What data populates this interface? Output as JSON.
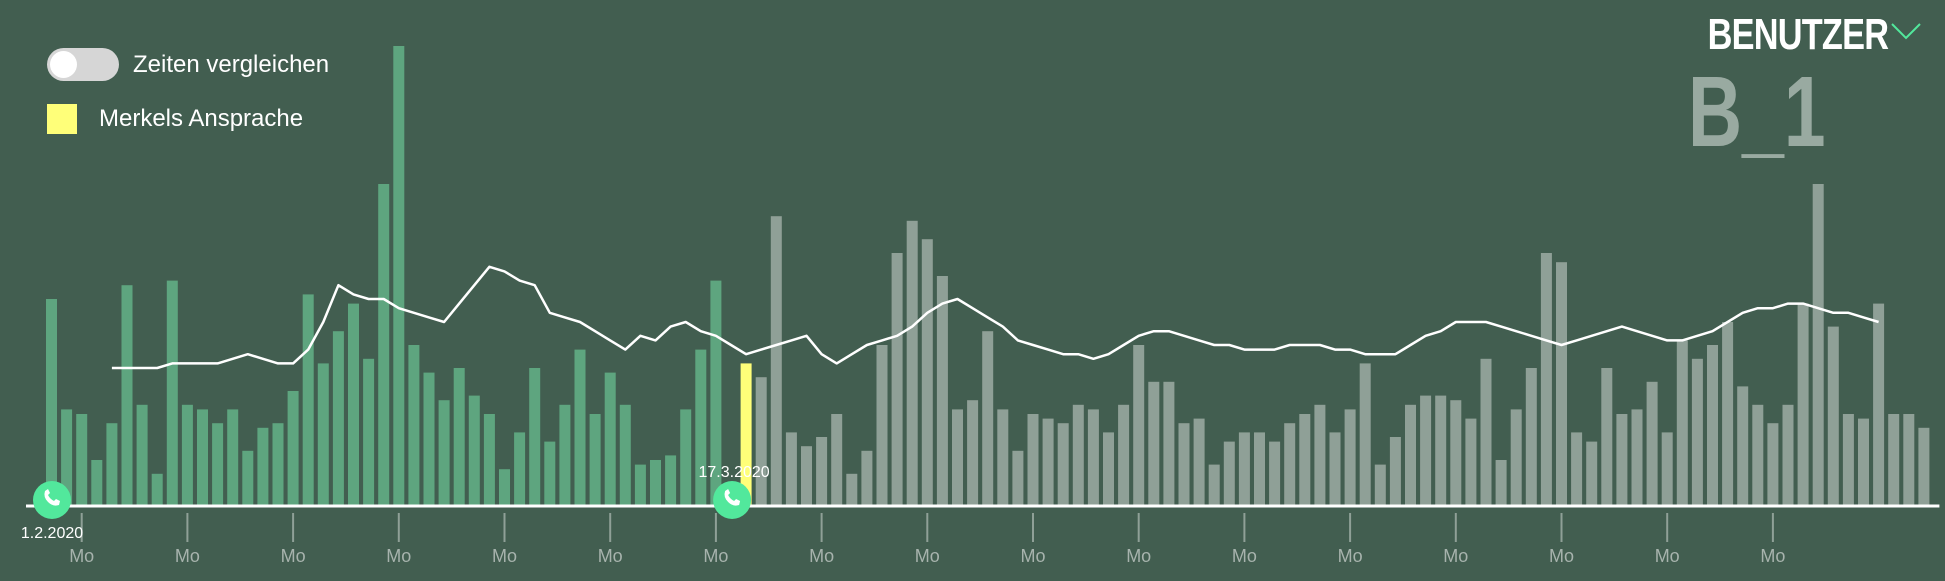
{
  "controls": {
    "compare_label": "Zeiten vergleichen",
    "compare_enabled": false
  },
  "legend": {
    "event_label": "Merkels Ansprache",
    "event_color": "#ffff79"
  },
  "user": {
    "title": "BENUTZER",
    "value": "B_1"
  },
  "colors": {
    "background": "#425e50",
    "bar_before": "#5ea57f",
    "bar_after": "#8fa097",
    "event": "#ffff79",
    "marker": "#52e89c",
    "trend_line": "#ffffff"
  },
  "chart_data": {
    "type": "bar",
    "title": "",
    "xlabel": "",
    "ylabel": "",
    "ylim": [
      0,
      100
    ],
    "start_date": "1.2.2020",
    "event_date": "17.3.2020",
    "event_index": 46,
    "x_tick_label": "Mo",
    "x_tick_indices": [
      2,
      9,
      16,
      23,
      30,
      37,
      44,
      51,
      58,
      65,
      72,
      79,
      86,
      93,
      100,
      107,
      114
    ],
    "series": [
      {
        "values": [
          45,
          21,
          20,
          10,
          18,
          48,
          22,
          7,
          49,
          22,
          21,
          18,
          21,
          12,
          17,
          18,
          25,
          46,
          31,
          38,
          44,
          32,
          70,
          100,
          35,
          29,
          23,
          30,
          24,
          20,
          8,
          16,
          30,
          14,
          22,
          34,
          20,
          29,
          22,
          9,
          10,
          11,
          21,
          34,
          49,
          5,
          31,
          28,
          63,
          16,
          13,
          15,
          20,
          7,
          12,
          35,
          55,
          62,
          58,
          50,
          21,
          23,
          38,
          21,
          12,
          20,
          19,
          18,
          22,
          21,
          16,
          22,
          35,
          27,
          27,
          18,
          19,
          9,
          14,
          16,
          16,
          14,
          18,
          20,
          22,
          16,
          21,
          31,
          9,
          15,
          22,
          24,
          24,
          23,
          19,
          32,
          10,
          21,
          30,
          55,
          53,
          16,
          14,
          30,
          20,
          21,
          27,
          16,
          36,
          32,
          35,
          40,
          26,
          22,
          18,
          22,
          44,
          70,
          39,
          20,
          19,
          44,
          20,
          20,
          17
        ],
        "trend": [
          null,
          null,
          null,
          null,
          30,
          30,
          30,
          30,
          31,
          31,
          31,
          31,
          32,
          33,
          32,
          31,
          31,
          34,
          40,
          48,
          46,
          45,
          45,
          43,
          42,
          41,
          40,
          44,
          48,
          52,
          51,
          49,
          48,
          42,
          41,
          40,
          38,
          36,
          34,
          37,
          36,
          39,
          40,
          38,
          37,
          35,
          33,
          34,
          35,
          36,
          37,
          33,
          31,
          33,
          35,
          36,
          37,
          39,
          42,
          44,
          45,
          43,
          41,
          39,
          36,
          35,
          34,
          33,
          33,
          32,
          33,
          35,
          37,
          38,
          38,
          37,
          36,
          35,
          35,
          34,
          34,
          34,
          35,
          35,
          35,
          34,
          34,
          33,
          33,
          33,
          35,
          37,
          38,
          40,
          40,
          40,
          39,
          38,
          37,
          36,
          35,
          36,
          37,
          38,
          39,
          38,
          37,
          36,
          36,
          37,
          38,
          40,
          42,
          43,
          43,
          44,
          44,
          43,
          42,
          42,
          41,
          40,
          null,
          null,
          null
        ]
      }
    ]
  }
}
